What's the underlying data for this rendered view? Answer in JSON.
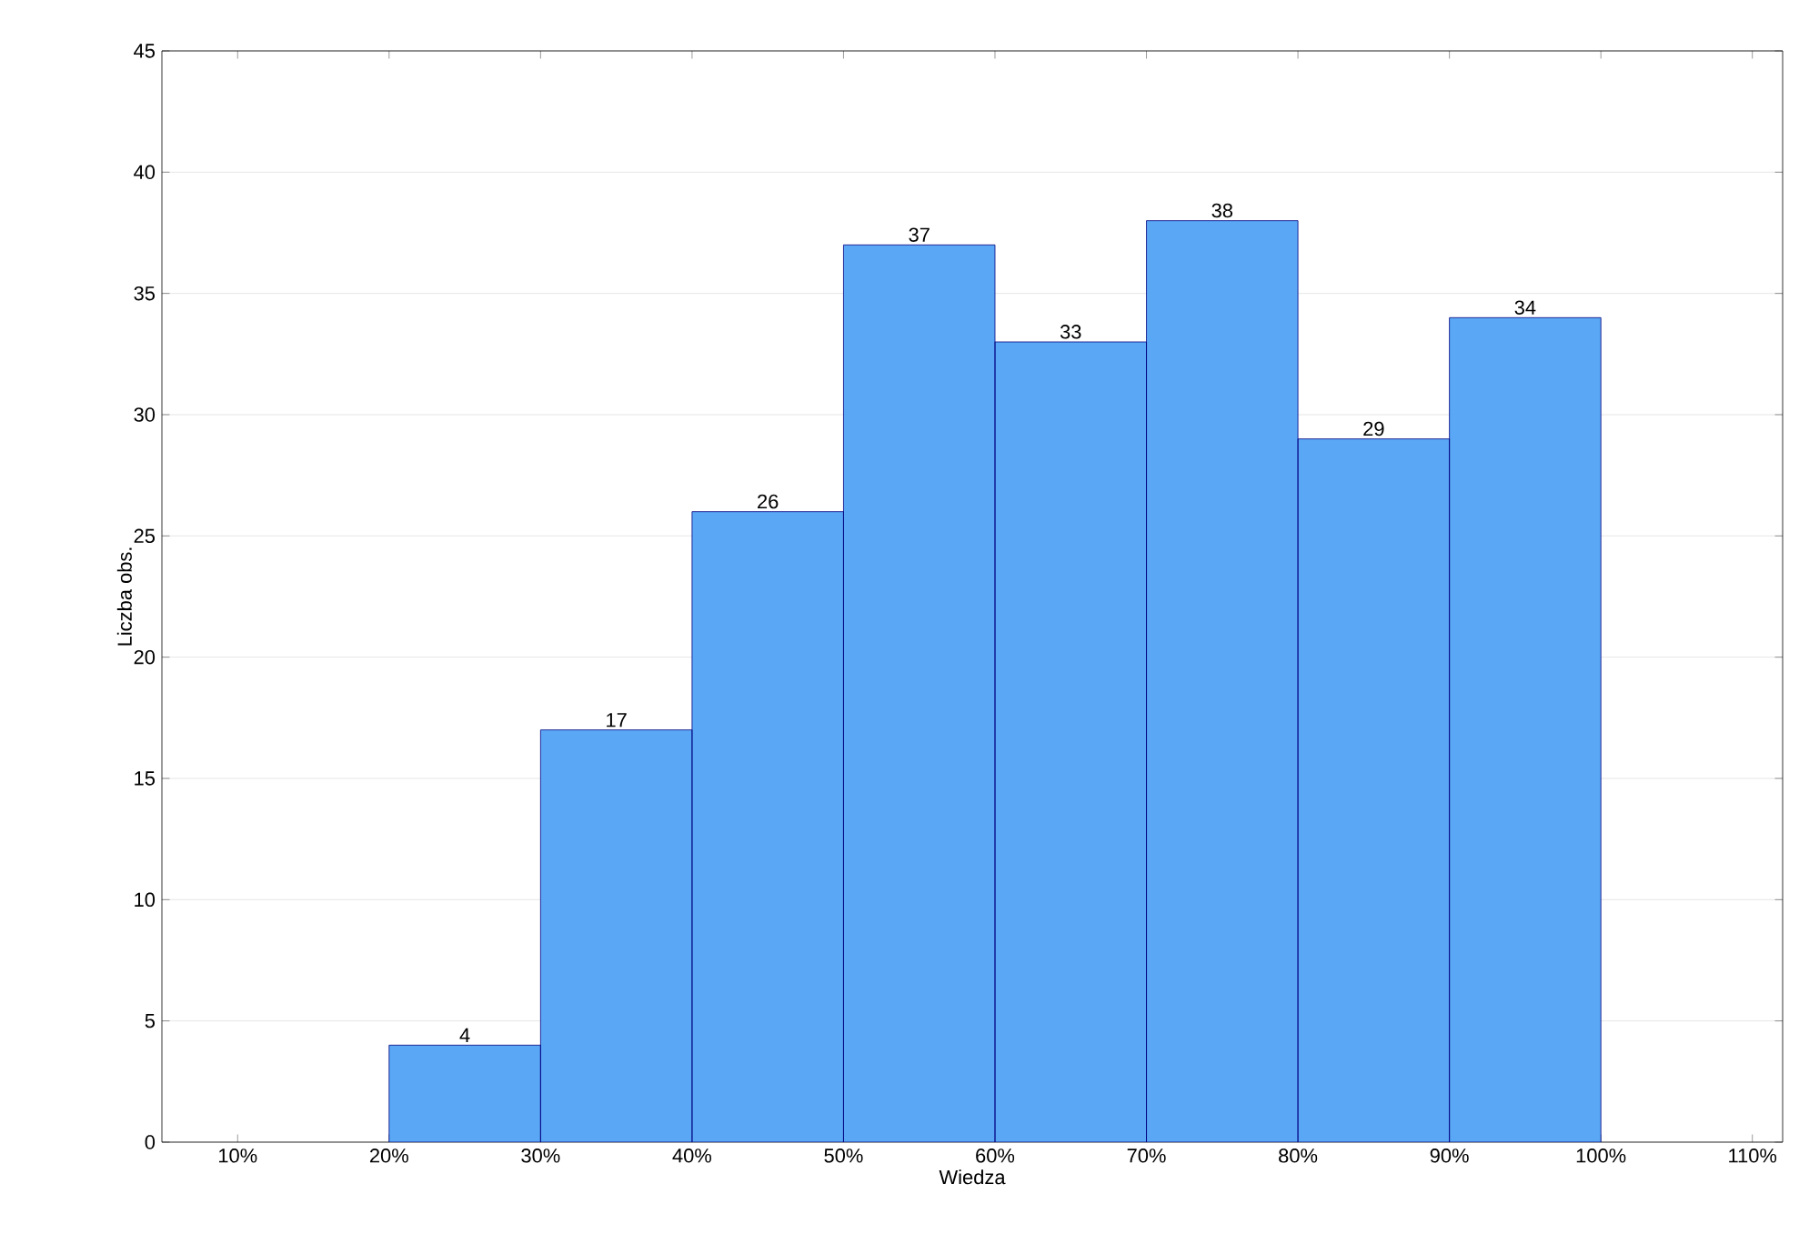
{
  "chart_data": {
    "type": "histogram",
    "xlabel": "Wiedza",
    "ylabel": "Liczba obs.",
    "bins": [
      20,
      30,
      40,
      50,
      60,
      70,
      80,
      90,
      100
    ],
    "values": [
      4,
      17,
      26,
      37,
      33,
      38,
      29,
      34
    ],
    "color": "#5aa8f5",
    "data_labels": true,
    "xlim": [
      5,
      112
    ],
    "ylim": [
      0,
      45
    ],
    "xticks": [
      {
        "value": 10,
        "label": "10%"
      },
      {
        "value": 20,
        "label": "20%"
      },
      {
        "value": 30,
        "label": "30%"
      },
      {
        "value": 40,
        "label": "40%"
      },
      {
        "value": 50,
        "label": "50%"
      },
      {
        "value": 60,
        "label": "60%"
      },
      {
        "value": 70,
        "label": "70%"
      },
      {
        "value": 80,
        "label": "80%"
      },
      {
        "value": 90,
        "label": "90%"
      },
      {
        "value": 100,
        "label": "100%"
      },
      {
        "value": 110,
        "label": "110%"
      }
    ],
    "yticks": [
      0,
      5,
      10,
      15,
      20,
      25,
      30,
      35,
      40,
      45
    ],
    "grid": "y"
  }
}
